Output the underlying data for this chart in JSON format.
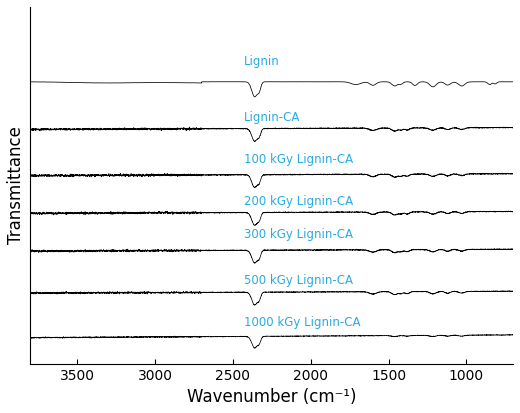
{
  "xlabel": "Wavenumber (cm⁻¹)",
  "ylabel": "Transmittance",
  "xmin": 700,
  "xmax": 3800,
  "labels": [
    "Lignin",
    "Lignin-CA",
    "100 kGy Lignin-CA",
    "200 kGy Lignin-CA",
    "300 kGy Lignin-CA",
    "500 kGy Lignin-CA",
    "1000 kGy Lignin-CA"
  ],
  "label_color": "#29ABE2",
  "offsets": [
    6.2,
    5.1,
    4.0,
    3.1,
    2.2,
    1.2,
    0.15
  ],
  "background_color": "#ffffff",
  "tick_label_fontsize": 10,
  "axis_label_fontsize": 12,
  "label_fontsize": 8.5,
  "label_positions_x": [
    2430,
    2430,
    2430,
    2430,
    2430,
    2430,
    2430
  ],
  "label_positions_y_offset": [
    0.35,
    0.12,
    0.22,
    0.12,
    0.22,
    0.12,
    0.18
  ]
}
